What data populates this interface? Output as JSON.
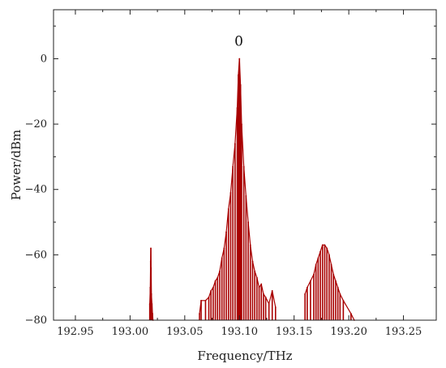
{
  "chart_data": {
    "type": "line",
    "title": "",
    "xlabel": "Frequency/THz",
    "ylabel": "Power/dBm",
    "xlim": [
      192.93,
      193.28
    ],
    "ylim": [
      -80,
      15
    ],
    "xticks": [
      192.95,
      193.0,
      193.05,
      193.1,
      193.15,
      193.2,
      193.25
    ],
    "xtick_labels": [
      "192.95",
      "193.00",
      "193.05",
      "193.10",
      "193.15",
      "193.20",
      "193.25"
    ],
    "yticks": [
      0,
      -20,
      -40,
      -60,
      -80
    ],
    "ytick_labels": [
      "0",
      "−20",
      "−40",
      "−60",
      "−80"
    ],
    "grid": false,
    "legend": "none",
    "series_color": "#a80000",
    "annotations": [
      {
        "text": "0",
        "x": 193.0995,
        "y": 4
      }
    ],
    "series": [
      {
        "x": [
          193.018,
          193.0185,
          193.0188,
          193.019,
          193.0192,
          193.0195,
          193.02,
          193.0205,
          193.021,
          193.0635,
          193.065,
          193.069,
          193.072,
          193.074,
          193.076,
          193.078,
          193.08,
          193.082,
          193.084,
          193.086,
          193.088,
          193.09,
          193.092,
          193.094,
          193.096,
          193.098,
          193.099,
          193.1,
          193.101,
          193.102,
          193.104,
          193.106,
          193.108,
          193.11,
          193.112,
          193.114,
          193.116,
          193.118,
          193.12,
          193.122,
          193.124,
          193.127,
          193.13,
          193.133,
          193.16,
          193.162,
          193.165,
          193.168,
          193.17,
          193.172,
          193.174,
          193.176,
          193.178,
          193.18,
          193.182,
          193.184,
          193.186,
          193.188,
          193.19,
          193.192,
          193.195,
          193.202,
          193.205
        ],
        "values": [
          -75,
          -70,
          -62,
          -58,
          -64,
          -72,
          -75,
          -78,
          -80,
          -78,
          -74,
          -74,
          -73,
          -71,
          -70,
          -68,
          -67,
          -65,
          -61,
          -58,
          -53,
          -46,
          -41,
          -33,
          -26,
          -15,
          -5,
          0,
          -8,
          -20,
          -33,
          -42,
          -50,
          -57,
          -62,
          -65,
          -67,
          -70,
          -69,
          -72,
          -73,
          -75,
          -71,
          -76,
          -72,
          -70,
          -68,
          -66,
          -63,
          -61,
          -59,
          -57,
          -57,
          -58,
          -60,
          -63,
          -66,
          -68,
          -70,
          -72,
          -74,
          -78,
          -80
        ]
      }
    ]
  }
}
